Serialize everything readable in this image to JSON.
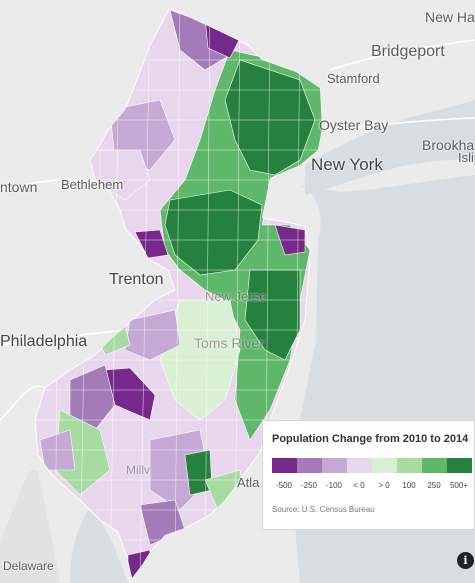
{
  "places": {
    "new_haven": "New Ha",
    "bridgeport": "Bridgeport",
    "stamford": "Stamford",
    "oyster_bay": "Oyster Bay",
    "new_york": "New York",
    "brookhaven": "Brookha",
    "islip": "Islip",
    "allentown": "ntown",
    "bethlehem": "Bethlehem",
    "trenton": "Trenton",
    "philadelphia": "Philadelphia",
    "new_jersey": "New Jerse",
    "toms_river": "Toms River",
    "atlantic_city": "Atla",
    "delaware": "Delaware",
    "millville": "Millv"
  },
  "legend": {
    "title": "Population Change from 2010 to 2014",
    "bins": [
      {
        "label": "-500",
        "color": "#76288b"
      },
      {
        "label": "-250",
        "color": "#a27bb8"
      },
      {
        "label": "-100",
        "color": "#c6a8d6"
      },
      {
        "label": "< 0",
        "color": "#e8d7ec"
      },
      {
        "label": "> 0",
        "color": "#daf0d4"
      },
      {
        "label": "100",
        "color": "#a8dba1"
      },
      {
        "label": "250",
        "color": "#5fb86a"
      },
      {
        "label": "500+",
        "color": "#26813f"
      }
    ],
    "source": "Source: U.S. Census Bureau"
  },
  "info_button": "i"
}
